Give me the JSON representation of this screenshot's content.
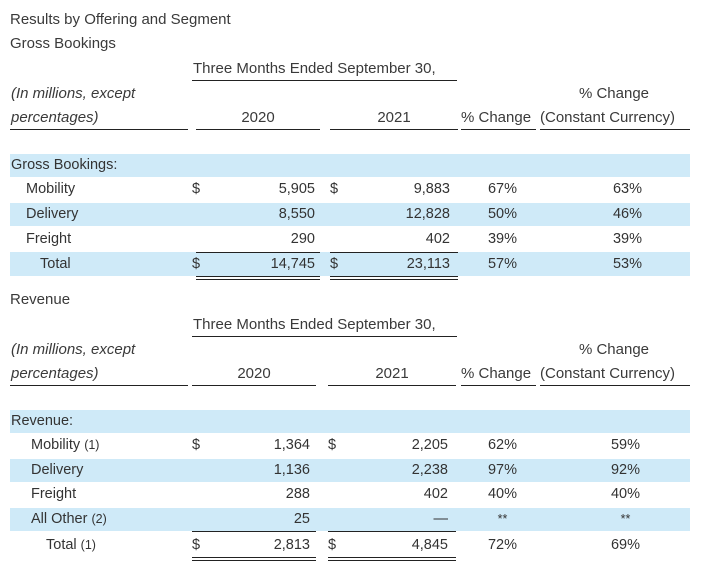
{
  "page_title": "Results by Offering and Segment",
  "gross": {
    "section_title": "Gross Bookings",
    "period_header": "Three Months Ended September 30,",
    "units_line1": "(In millions, except",
    "units_line2": "percentages)",
    "col_2020": "2020",
    "col_2021": "2021",
    "col_pct_change": "% Change",
    "col_cc_line1": "% Change",
    "col_cc_line2": "(Constant Currency)",
    "group_label": "Gross Bookings:",
    "rows": [
      {
        "label": "Mobility",
        "cur1": "$",
        "v2020": "5,905",
        "cur2": "$",
        "v2021": "9,883",
        "pct": "67%",
        "cc": "63%"
      },
      {
        "label": "Delivery",
        "cur1": "",
        "v2020": "8,550",
        "cur2": "",
        "v2021": "12,828",
        "pct": "50%",
        "cc": "46%"
      },
      {
        "label": "Freight",
        "cur1": "",
        "v2020": "290",
        "cur2": "",
        "v2021": "402",
        "pct": "39%",
        "cc": "39%"
      },
      {
        "label": "Total",
        "cur1": "$",
        "v2020": "14,745",
        "cur2": "$",
        "v2021": "23,113",
        "pct": "57%",
        "cc": "53%"
      }
    ]
  },
  "revenue": {
    "section_title": "Revenue",
    "period_header": "Three Months Ended September 30,",
    "units_line1": "(In millions, except",
    "units_line2": "percentages)",
    "col_2020": "2020",
    "col_2021": "2021",
    "col_pct_change": "% Change",
    "col_cc_line1": "% Change",
    "col_cc_line2": "(Constant Currency)",
    "group_label": "Revenue:",
    "rows": [
      {
        "label": "Mobility",
        "note": "(1)",
        "cur1": "$",
        "v2020": "1,364",
        "cur2": "$",
        "v2021": "2,205",
        "pct": "62%",
        "cc": "59%"
      },
      {
        "label": "Delivery",
        "note": "",
        "cur1": "",
        "v2020": "1,136",
        "cur2": "",
        "v2021": "2,238",
        "pct": "97%",
        "cc": "92%"
      },
      {
        "label": "Freight",
        "note": "",
        "cur1": "",
        "v2020": "288",
        "cur2": "",
        "v2021": "402",
        "pct": "40%",
        "cc": "40%"
      },
      {
        "label": "All Other",
        "note": "(2)",
        "cur1": "",
        "v2020": "25",
        "cur2": "",
        "v2021": "—",
        "pct": "**",
        "cc": "**"
      },
      {
        "label": "Total",
        "note": "(1)",
        "cur1": "$",
        "v2020": "2,813",
        "cur2": "$",
        "v2021": "4,845",
        "pct": "72%",
        "cc": "69%"
      }
    ]
  }
}
